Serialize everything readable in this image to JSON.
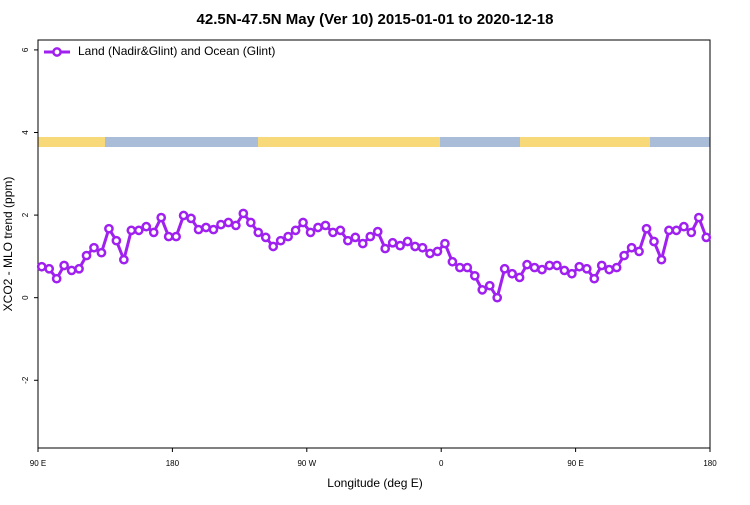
{
  "chart_data": {
    "type": "line",
    "title": "42.5N-47.5N May (Ver 10)   2015-01-01 to 2020-12-18",
    "x_label": "Longitude (deg E)",
    "y_label": "XCO2 - MLO trend (ppm)",
    "xlim": [
      90,
      540
    ],
    "xticks": [
      {
        "value": 90,
        "label": "90 E"
      },
      180,
      {
        "value": 270,
        "label": "90 W"
      },
      {
        "value": 360,
        "label": "0"
      },
      {
        "value": 450,
        "label": "90 E"
      },
      {
        "value": 540,
        "label": "180"
      }
    ],
    "ylim": [
      -3.64,
      6.24
    ],
    "yticks": [
      -2,
      0,
      2,
      4,
      6
    ],
    "legend": "top-left",
    "x": [
      92.5,
      97.5,
      102.5,
      107.5,
      112.5,
      117.5,
      122.5,
      127.5,
      132.5,
      137.5,
      142.5,
      147.5,
      152.5,
      157.5,
      162.5,
      167.5,
      172.5,
      177.5,
      182.5,
      187.5,
      192.5,
      197.5,
      202.5,
      207.5,
      212.5,
      217.5,
      222.5,
      227.5,
      232.5,
      237.5,
      242.5,
      247.5,
      252.5,
      257.5,
      262.5,
      267.5,
      272.5,
      277.5,
      282.5,
      287.5,
      292.5,
      297.5,
      302.5,
      307.5,
      312.5,
      317.5,
      322.5,
      327.5,
      332.5,
      337.5,
      342.5,
      347.5,
      352.5,
      357.5,
      362.5,
      367.5,
      372.5,
      377.5,
      382.5,
      387.5,
      392.5,
      397.5,
      402.5,
      407.5,
      412.5,
      417.5,
      422.5,
      427.5,
      432.5,
      437.5,
      442.5,
      447.5,
      452.5,
      457.5,
      462.5,
      467.5,
      472.5,
      477.5,
      482.5,
      487.5,
      492.5,
      497.5,
      502.5,
      507.5,
      512.5,
      517.5,
      522.5,
      527.5,
      532.5,
      537.5
    ],
    "series": [
      {
        "name": "Land (Nadir&Glint) and Ocean (Glint)",
        "color": "#a020f0",
        "values": [
          0.75,
          0.7,
          0.46,
          0.78,
          0.66,
          0.7,
          1.02,
          1.21,
          1.09,
          1.67,
          1.38,
          0.92,
          1.63,
          1.63,
          1.72,
          1.58,
          1.94,
          1.48,
          1.48,
          1.99,
          1.92,
          1.65,
          1.7,
          1.65,
          1.77,
          1.82,
          1.75,
          2.04,
          1.82,
          1.58,
          1.46,
          1.24,
          1.38,
          1.48,
          1.63,
          1.82,
          1.58,
          1.7,
          1.75,
          1.58,
          1.63,
          1.38,
          1.46,
          1.31,
          1.48,
          1.6,
          1.19,
          1.33,
          1.26,
          1.36,
          1.24,
          1.21,
          1.07,
          1.12,
          1.31,
          0.87,
          0.73,
          0.73,
          0.53,
          0.19,
          0.29,
          0.0,
          0.7,
          0.58,
          0.49,
          0.8,
          0.73,
          0.68,
          0.78,
          0.78,
          0.66,
          0.58,
          0.75,
          0.7,
          0.46,
          0.78,
          0.68,
          0.73,
          1.02,
          1.21,
          1.12,
          1.67,
          1.36,
          0.92,
          1.63,
          1.63,
          1.72,
          1.58,
          1.94,
          1.46
        ]
      }
    ]
  }
}
